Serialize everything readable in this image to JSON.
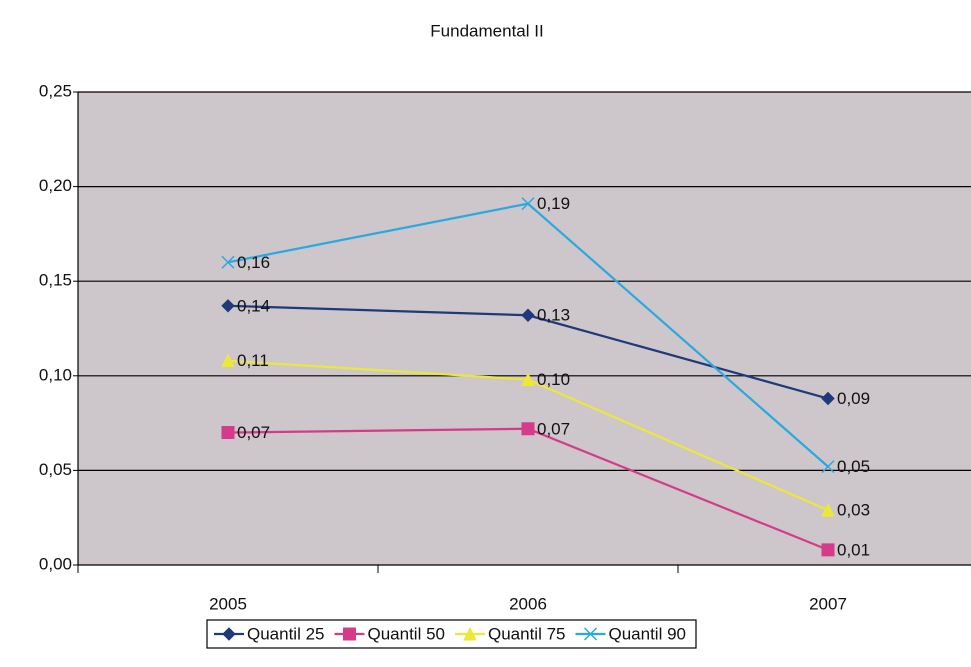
{
  "chart_data": {
    "type": "line",
    "title": "Fundamental II",
    "categories": [
      "2005",
      "2006",
      "2007"
    ],
    "series": [
      {
        "name": "Quantil 25",
        "color": "#1f3a7a",
        "marker": "diamond",
        "values": [
          0.137,
          0.132,
          0.088
        ],
        "value_labels": [
          "0,14",
          "0,13",
          "0,09"
        ]
      },
      {
        "name": "Quantil 50",
        "color": "#d63a8a",
        "marker": "square",
        "values": [
          0.07,
          0.072,
          0.008
        ],
        "value_labels": [
          "0,07",
          "0,07",
          "0,01"
        ]
      },
      {
        "name": "Quantil 75",
        "color": "#ece838",
        "marker": "triangle",
        "values": [
          0.108,
          0.098,
          0.029
        ],
        "value_labels": [
          "0,11",
          "0,10",
          "0,03"
        ]
      },
      {
        "name": "Quantil 90",
        "color": "#2aa8e0",
        "marker": "x",
        "values": [
          0.16,
          0.191,
          0.052
        ],
        "value_labels": [
          "0,16",
          "0,19",
          "0,05"
        ]
      }
    ],
    "ylim": [
      0,
      0.25
    ],
    "yticks": [
      {
        "value": 0,
        "label": "0,00"
      },
      {
        "value": 0.05,
        "label": "0,05"
      },
      {
        "value": 0.1,
        "label": "0,10"
      },
      {
        "value": 0.15,
        "label": "0,15"
      },
      {
        "value": 0.2,
        "label": "0,20"
      },
      {
        "value": 0.25,
        "label": "0,25"
      }
    ],
    "grid": true,
    "legend": "bottom"
  }
}
